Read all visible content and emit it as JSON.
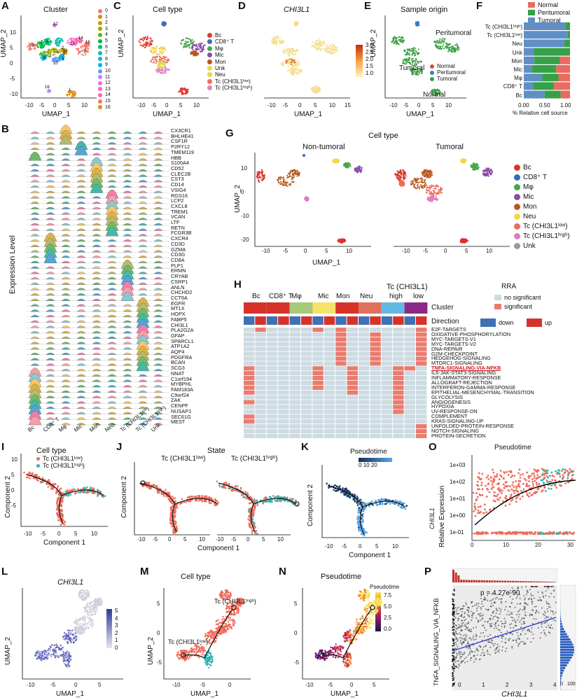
{
  "panels": {
    "A": {
      "letter": "A",
      "title": "Cluster",
      "xlabel": "UMAP_1",
      "ylabel": "UMAP_2",
      "xticks": [
        "-10",
        "-5",
        "0",
        "5",
        "10"
      ],
      "yticks": [
        "10",
        "5",
        "0",
        "-5",
        "-10"
      ],
      "legend": [
        "0",
        "1",
        "2",
        "3",
        "4",
        "5",
        "6",
        "7",
        "8",
        "9",
        "10",
        "11",
        "12",
        "13",
        "14",
        "15",
        "16"
      ],
      "cluster_labels": [
        "12",
        "7",
        "14",
        "15",
        "5",
        "11",
        "13",
        "1",
        "16",
        "0",
        "3",
        "4",
        "6",
        "9",
        "10",
        "8",
        "2",
        "2"
      ],
      "colors": [
        "#f8766d",
        "#e58700",
        "#c99800",
        "#a3a500",
        "#6bb100",
        "#00ba38",
        "#00bf7d",
        "#00c0af",
        "#00bcd8",
        "#00b0f6",
        "#619cff",
        "#b983ff",
        "#e76bf3",
        "#fd61d1",
        "#ff67a4",
        "#f8766d",
        "#e58700"
      ]
    },
    "C": {
      "letter": "C",
      "title": "Cell type",
      "xlabel": "UMAP_1",
      "ylabel": "UMAP_2",
      "xticks": [
        "-10",
        "-5",
        "0",
        "5",
        "10"
      ],
      "legend": [
        "Bc",
        "CD8⁺ T",
        "Mφ",
        "Mic",
        "Mon",
        "Unk",
        "Neu",
        "Tc (CHI3L1ˡᵒʷ)",
        "Tc (CHI3L1ʰⁱᵍʰ)"
      ],
      "colors": [
        "#e03b2f",
        "#3b6fb6",
        "#4aa84a",
        "#8a4aa6",
        "#b5571e",
        "#dddd55",
        "#f0d24a",
        "#f26c5c",
        "#e77fbf"
      ]
    },
    "D": {
      "letter": "D",
      "title": "CHI3L1",
      "xlabel": "UMAP_1",
      "xticks": [
        "-10",
        "-5",
        "0",
        "5",
        "10",
        "15"
      ],
      "scale": [
        "3.0",
        "2.5",
        "2.0",
        "1.5",
        "1.0"
      ]
    },
    "E": {
      "letter": "E",
      "title": "Sample origin",
      "xlabel": "UMAP_1",
      "ylabel": "UMAP_2",
      "xticks": [
        "-10",
        "-5",
        "0",
        "5",
        "10"
      ],
      "labels": [
        "Peritumoral",
        "Tumoral",
        "Normal"
      ],
      "legend": [
        "Normal",
        "Peritumoral",
        "Tumoral"
      ],
      "colors": [
        "#e0473c",
        "#3c7bbf",
        "#3aa041"
      ]
    },
    "F": {
      "letter": "F",
      "legend": [
        "Normal",
        "Peritumoral",
        "Tumoral"
      ],
      "xlabel": "% Relative cell source",
      "xticks": [
        "0.00",
        "0.50",
        "1.00"
      ],
      "rows": [
        "Tc (CHI3L1ʰⁱᵍʰ)",
        "Tc (CHI3L1ˡᵒʷ)",
        "Neu",
        "Unk",
        "Mon",
        "Mic",
        "Mφ",
        "CD8⁺ T",
        "Bc"
      ]
    },
    "B": {
      "letter": "B",
      "ylabel": "Expression Level",
      "genes": [
        "CX3CR1",
        "BHLHE41",
        "CSF1R",
        "P2RY12",
        "TMEM119",
        "HBB",
        "S100A4",
        "CD52",
        "CLEC2B",
        "CST3",
        "CD14",
        "VSIG4",
        "RGS16",
        "LCP2",
        "CXCL8",
        "TREM1",
        "VCAN",
        "LTF",
        "RETN",
        "FCGR3B",
        "CXCR4",
        "CD3D",
        "GZMA",
        "CD3G",
        "CD8A",
        "PLP1",
        "ERMN",
        "CRYAB",
        "CSRP1",
        "ANLN",
        "CHCHD2",
        "CCT6A",
        "EGFR",
        "MT1X",
        "HOPX",
        "FABP5",
        "CHI3L1",
        "PLA2G2A",
        "GFAP",
        "SPARCL1",
        "ATP1A2",
        "AQP4",
        "PDGFRA",
        "BCAN",
        "SCG3",
        "NNAT",
        "C1orf194",
        "MYBPHL",
        "FAM183A",
        "C9orf24",
        "ZAK",
        "CENPF",
        "NUSAP1",
        "SEC61G",
        "MEST"
      ],
      "celltypes": [
        "Bc",
        "CD8⁺ T",
        "Mφ",
        "Mic",
        "Mon",
        "Neu",
        "Tc (CHI3L1ˡᵒʷ)",
        "Tc (CHI3L1ʰⁱᵍʰ)",
        "Unk"
      ]
    },
    "G": {
      "letter": "G",
      "title": "Cell type",
      "sub": [
        "Non-tumoral",
        "Tumoral"
      ],
      "xlabel": "UMAP_1",
      "ylabel": "UMAP_2",
      "xticks": [
        "-10",
        "-5",
        "0",
        "5",
        "10"
      ],
      "yticks": [
        "10",
        "0",
        "-10",
        "-20"
      ],
      "legend": [
        "Bc",
        "CD8⁺ T",
        "Mφ",
        "Mic",
        "Mon",
        "Neu",
        "Tc (CHI3L1ˡᵒʷ)",
        "Tc (CHI3L1ʰⁱᵍʰ)",
        "Unk"
      ],
      "colors": [
        "#d9342b",
        "#2f6db5",
        "#46a546",
        "#8b4da5",
        "#b8561f",
        "#f0d94a",
        "#f06a5a",
        "#e27bbd",
        "#9a9a9a"
      ]
    },
    "H": {
      "letter": "H",
      "groups": [
        "Bc",
        "CD8⁺ T",
        "Mφ",
        "Mic",
        "Mon",
        "Neu",
        "high",
        "low"
      ],
      "supergroup": "Tc (CHI3L1)",
      "rowlabels": [
        "Cluster",
        "Direction"
      ],
      "rra_title": "RRA",
      "rra": [
        "no significant",
        "significant"
      ],
      "dir": [
        "down",
        "up"
      ],
      "pathways": [
        "E2F-TARGETS",
        "OXIDATIVE-PHOSPHORYLATION",
        "MYC-TARGETS-V1",
        "MYC-TARGETS-V2",
        "DNA-REPAIR",
        "G2M-CHECKPOINT",
        "HEDGEHOG-SIGNALING",
        "MTORC1-SIGNALING",
        "TNFA-SIGNALING-VIA-NFKB",
        "IL6-JAK-STAT3-SIGNALING",
        "INFLAMMATORY-RESPONSE",
        "ALLOGRAFT-REJECTION",
        "INTERFERON-GAMMA-RESPONSE",
        "EPITHELIAL-MESENCHYMAL-TRANSITION",
        "GLYCOLYSIS",
        "ANGIOGENESIS",
        "HYPOXIA",
        "UV-RESPONSE-DN",
        "COMPLEMENT",
        "KRAS-SIGNALING-UP",
        "UNFOLDED-PROTEIN-RESPONSE",
        "NOTCH-SIGNALING",
        "PROTEIN-SECRETION"
      ]
    },
    "I": {
      "letter": "I",
      "title": "Cell type",
      "legend": [
        "Tc (CHI3L1ˡᵒʷ)",
        "Tc (CHI3L1ʰⁱᵍʰ)"
      ],
      "xlabel": "Component 1",
      "ylabel": "Component 2",
      "xticks": [
        "-10",
        "-5",
        "0",
        "5",
        "10"
      ],
      "yticks": [
        "10",
        "5",
        "0",
        "-5"
      ]
    },
    "J": {
      "letter": "J",
      "title": "State",
      "sub": [
        "Tc (CHI3L1ˡᵒʷ)",
        "Tc (CHI3L1ʰⁱᵍʰ)"
      ],
      "xlabel": "Component 1",
      "ylabel": "Component 2",
      "xticks": [
        "-10",
        "-5",
        "0",
        "5",
        "10"
      ]
    },
    "K": {
      "letter": "K",
      "title": "Pseudotime",
      "scale": [
        "0",
        "10",
        "20"
      ],
      "xlabel": "Component 1",
      "ylabel": "Component 2",
      "xticks": [
        "-10",
        "-5",
        "0",
        "5",
        "10"
      ]
    },
    "O": {
      "letter": "O",
      "title": "Pseudotime",
      "ylabel": "Relative Expression",
      "gene": "CHI3L1",
      "yticks": [
        "1e+03",
        "1e+02",
        "1e+01",
        "1e+00",
        "1e-01"
      ],
      "xticks": [
        "0",
        "10",
        "20",
        "30"
      ]
    },
    "L": {
      "letter": "L",
      "title": "CHI3L1",
      "xlabel": "UMAP_1",
      "ylabel": "UMAP_2",
      "xticks": [
        "-10",
        "-5",
        "0",
        "5"
      ],
      "yticks": [
        "5",
        "0",
        "-5"
      ],
      "scale": [
        "5",
        "4",
        "3",
        "2",
        "1",
        "0"
      ]
    },
    "M": {
      "letter": "M",
      "title": "Cell type",
      "labels": [
        "Tc (CHI3L1ˡᵒʷ)",
        "Tc (CHI3L1ʰⁱᵍʰ)"
      ],
      "xlabel": "UMAP_1",
      "ylabel": "UMAP_2",
      "xticks": [
        "-10",
        "-5",
        "0"
      ],
      "yticks": [
        "5",
        "0",
        "-5"
      ]
    },
    "N": {
      "letter": "N",
      "title": "Pseudotime",
      "scale_title": "Pseudotime",
      "scale": [
        "7.5",
        "5.0",
        "2.5",
        "0.0"
      ],
      "xlabel": "UMAP_1",
      "xticks": [
        "-10",
        "-5",
        "0",
        "5"
      ],
      "yticks": [
        "5",
        "0",
        "-5"
      ]
    },
    "P": {
      "letter": "P",
      "pvalue": "p = 4.27e-90",
      "ylabel": "TNFA_SIGNALING_VIA_NFKB",
      "xlabel": "CHI3L1",
      "xticks": [
        "0",
        "1",
        "2",
        "3",
        "4"
      ],
      "yticks": [
        "0.4",
        "0.2",
        "0",
        "-0.2",
        "-0.4"
      ],
      "side": [
        "0",
        "100"
      ],
      "top": [
        "500",
        "1000",
        "1500"
      ]
    }
  }
}
